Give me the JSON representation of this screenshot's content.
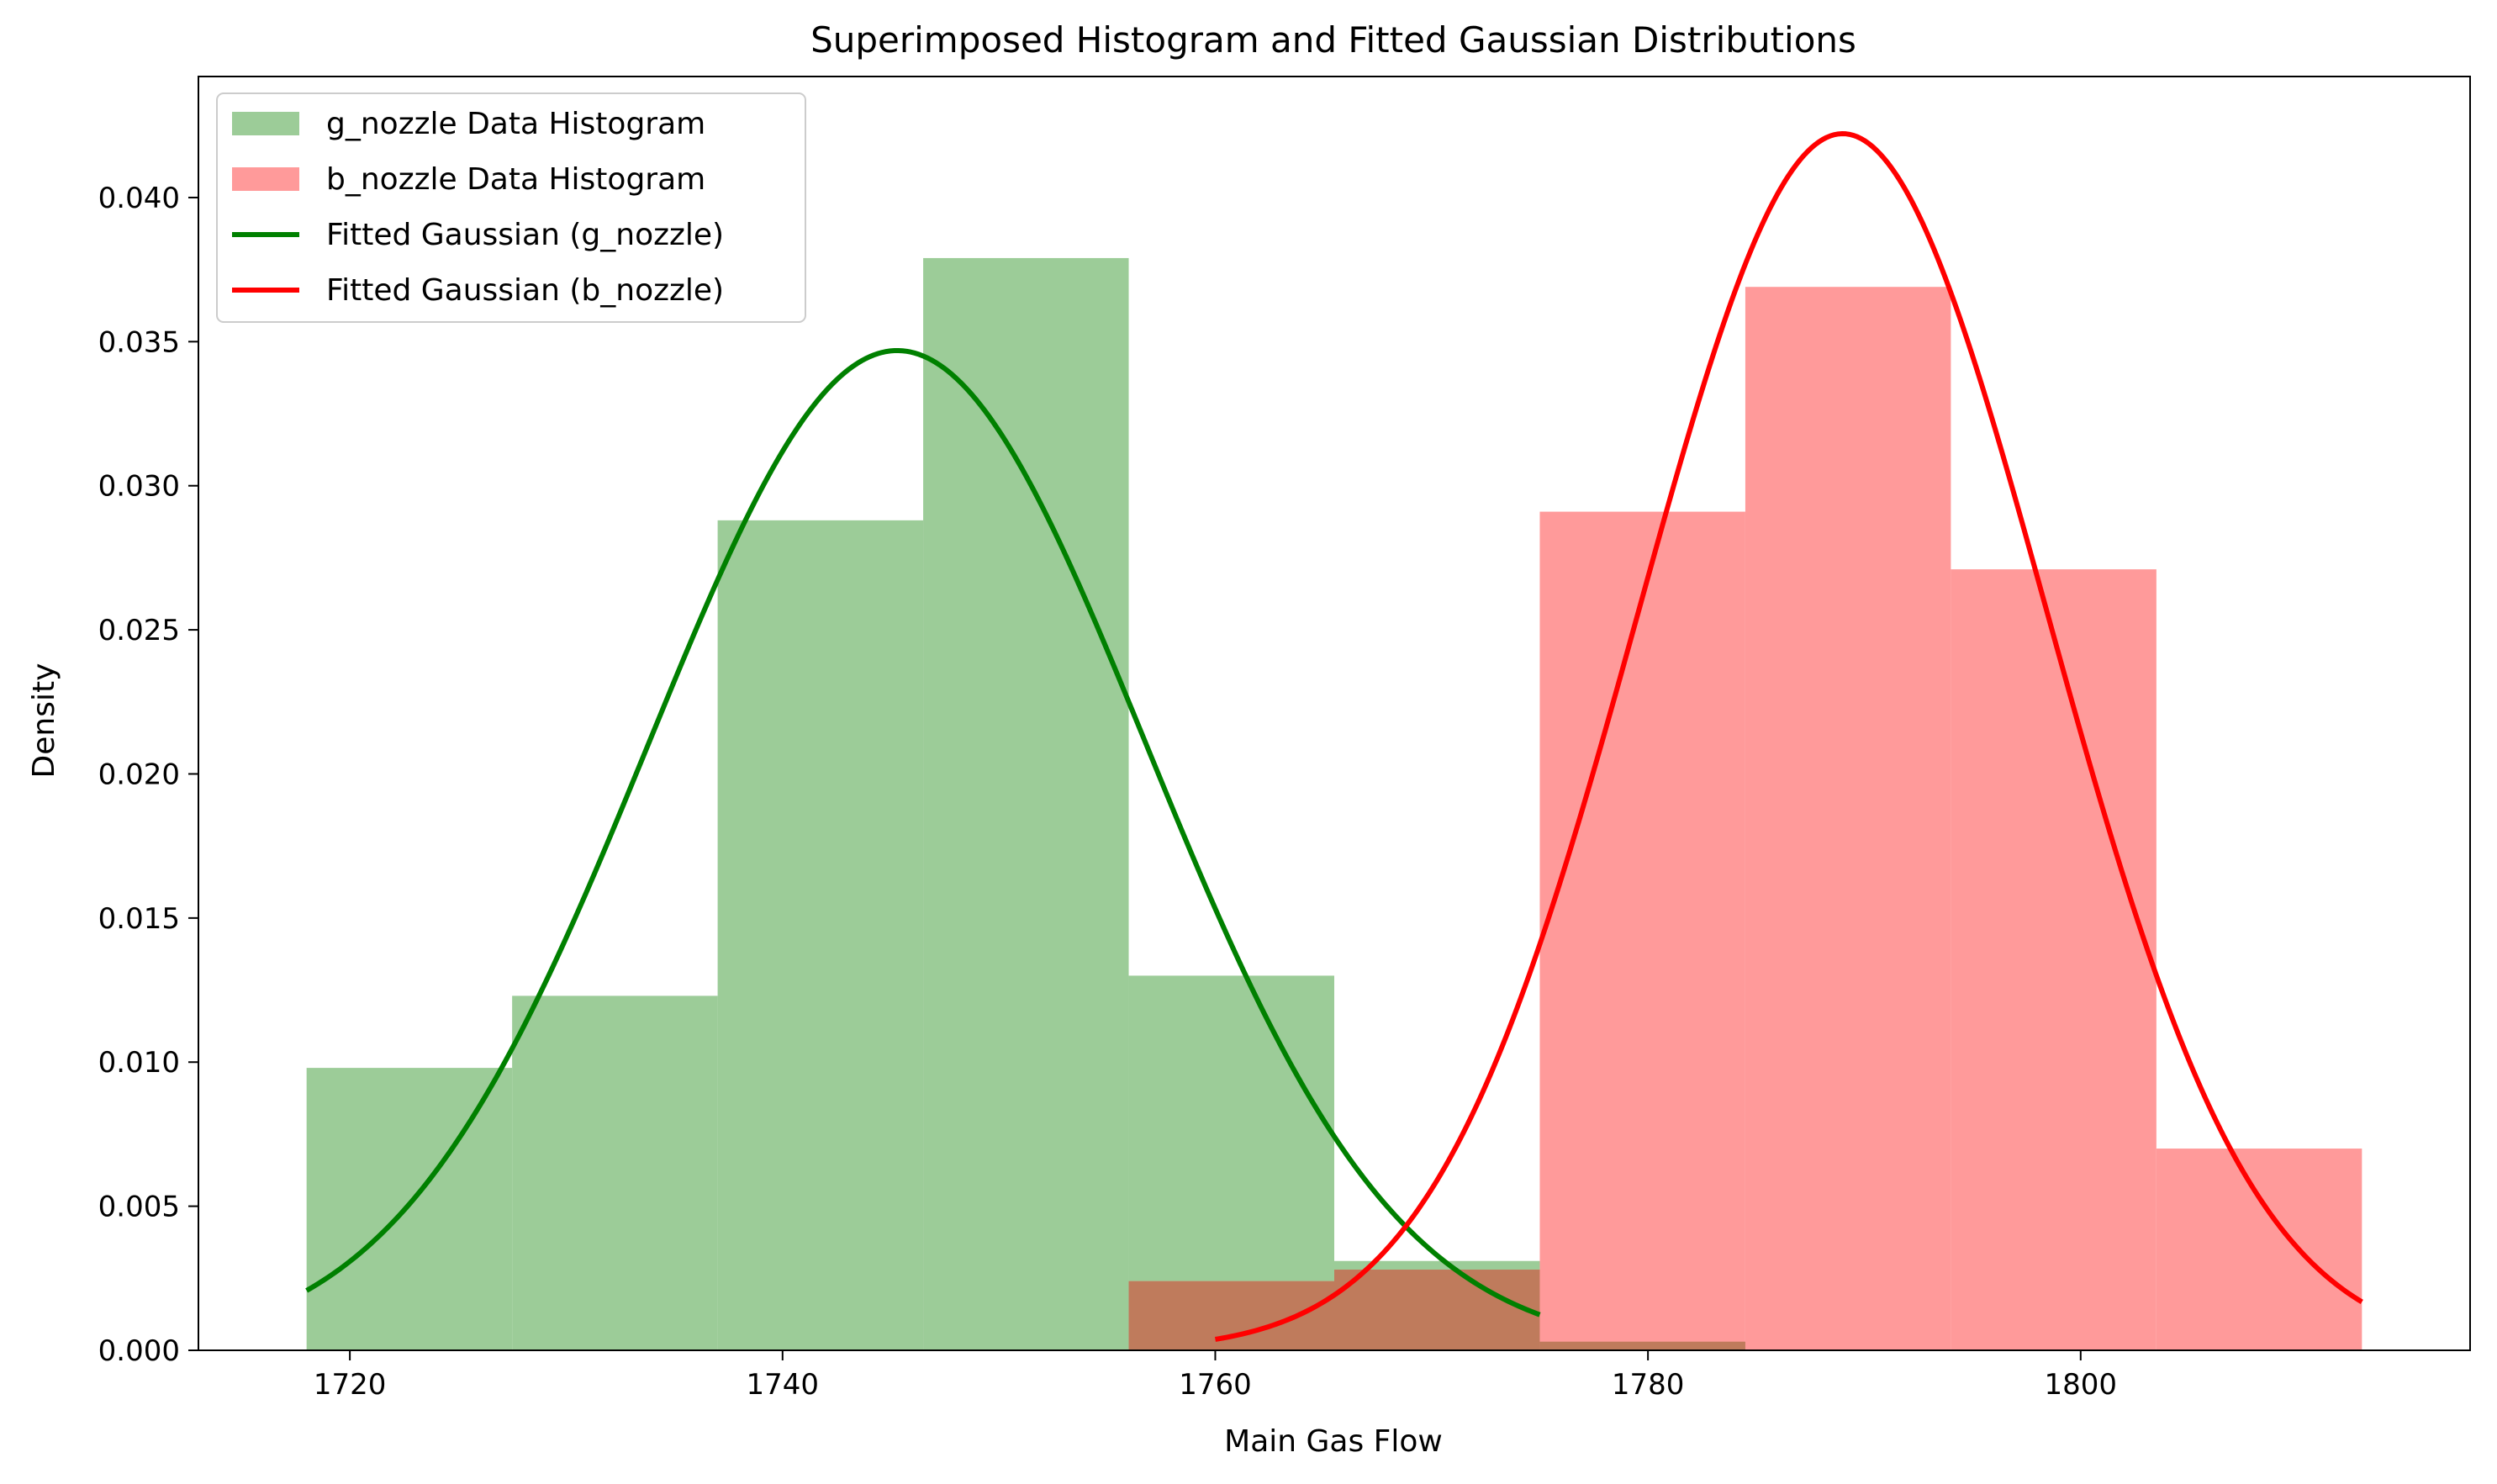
{
  "chart_data": {
    "type": "bar",
    "title": "Superimposed Histogram and Fitted Gaussian Distributions",
    "xlabel": "Main Gas Flow",
    "ylabel": "Density",
    "xlim": [
      1713,
      1818
    ],
    "ylim": [
      0,
      0.0442
    ],
    "xticks": [
      1720,
      1740,
      1760,
      1780,
      1800
    ],
    "yticks": [
      0.0,
      0.005,
      0.01,
      0.015,
      0.02,
      0.025,
      0.03,
      0.035,
      0.04
    ],
    "ytick_labels": [
      "0.000",
      "0.005",
      "0.010",
      "0.015",
      "0.020",
      "0.025",
      "0.030",
      "0.035",
      "0.040"
    ],
    "grid": false,
    "legend_position": "top-left",
    "histograms": [
      {
        "name": "g_nozzle Data Histogram",
        "color": "#2ca02c",
        "fill": "#9ccc98",
        "bin_edges": [
          1718.0,
          1727.5,
          1737.0,
          1746.5,
          1756.0,
          1765.5,
          1775.0
        ],
        "density": [
          0.0098,
          0.0123,
          0.0288,
          0.0379,
          0.013,
          0.0031
        ]
      },
      {
        "name": "b_nozzle Data Histogram",
        "color": "#ff0000",
        "fill": "#ff9a9a",
        "bin_edges": [
          1756.0,
          1765.5,
          1775.0,
          1784.5,
          1794.0,
          1803.5,
          1813.0
        ],
        "density": [
          0.0024,
          0.0028,
          0.0291,
          0.0369,
          0.0271,
          0.007
        ]
      }
    ],
    "overlap_fill": "#bf7b5c",
    "curves": [
      {
        "name": "Fitted Gaussian (g_nozzle)",
        "color": "#008000",
        "mean": 1745.3,
        "std": 11.5,
        "x_range": [
          1718,
          1775
        ]
      },
      {
        "name": "Fitted Gaussian (b_nozzle)",
        "color": "#ff0000",
        "mean": 1789.0,
        "std": 9.45,
        "x_range": [
          1760,
          1813
        ]
      }
    ],
    "extra_bar": {
      "series": "b_nozzle Data Histogram",
      "x_range": [
        1775.0,
        1784.5
      ],
      "density": 0.0003
    }
  }
}
